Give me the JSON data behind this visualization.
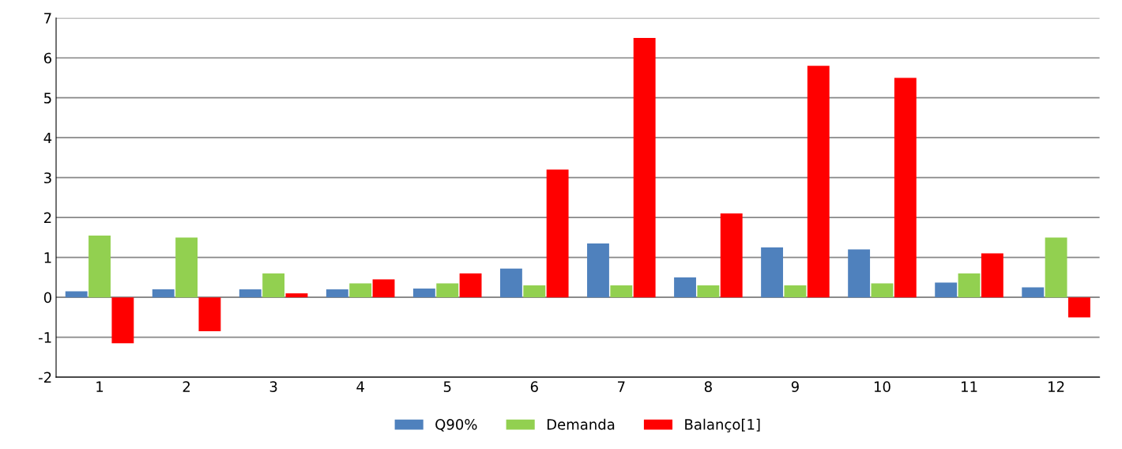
{
  "chart_data": {
    "type": "bar",
    "categories": [
      "1",
      "2",
      "3",
      "4",
      "5",
      "6",
      "7",
      "8",
      "9",
      "10",
      "11",
      "12"
    ],
    "series": [
      {
        "name": "Q90%",
        "color": "#4f81bd",
        "values": [
          0.15,
          0.2,
          0.2,
          0.2,
          0.22,
          0.72,
          1.35,
          0.5,
          1.25,
          1.2,
          0.37,
          0.25
        ]
      },
      {
        "name": "Demanda",
        "color": "#92d050",
        "values": [
          1.55,
          1.5,
          0.6,
          0.35,
          0.35,
          0.3,
          0.3,
          0.3,
          0.3,
          0.35,
          0.6,
          1.5
        ]
      },
      {
        "name": "Balanço[1]",
        "color": "#ff0000",
        "values": [
          -1.15,
          -0.85,
          0.1,
          0.45,
          0.6,
          3.2,
          6.5,
          2.1,
          5.8,
          5.5,
          1.1,
          -0.5
        ]
      }
    ],
    "ylim": [
      -2,
      7
    ],
    "yticks": [
      -2,
      -1,
      0,
      1,
      2,
      3,
      4,
      5,
      6,
      7
    ],
    "grid": "y",
    "legend": "bottom"
  }
}
